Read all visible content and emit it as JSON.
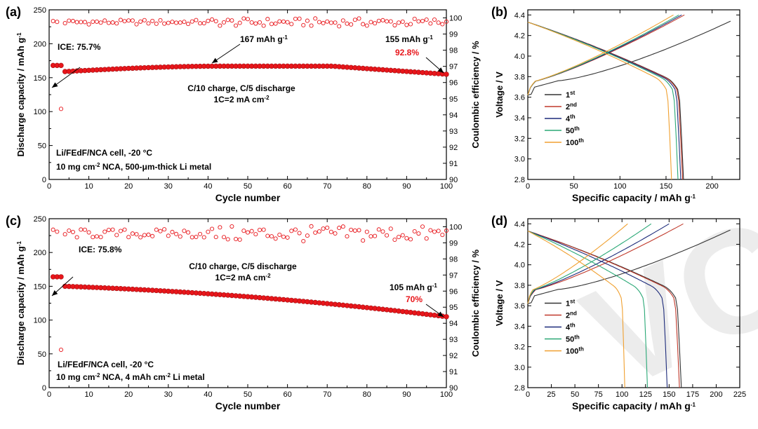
{
  "chart_data": [
    {
      "id": "a",
      "type": "scatter",
      "panel_label": "(a)",
      "xlabel": "Cycle number",
      "ylabel": "Discharge capacity / mAh g",
      "ylabel_sup": "-1",
      "y2label": "Coulombic efficiency / %",
      "xlim": [
        0,
        100
      ],
      "ylim": [
        0,
        250
      ],
      "y2lim": [
        90,
        100.5
      ],
      "xticks": [
        "0",
        "10",
        "20",
        "30",
        "40",
        "50",
        "60",
        "70",
        "80",
        "90",
        "100"
      ],
      "yticks": [
        "0",
        "50",
        "100",
        "150",
        "200",
        "250"
      ],
      "y2ticks": [
        "90",
        "91",
        "92",
        "93",
        "94",
        "95",
        "96",
        "97",
        "98",
        "99",
        "100"
      ],
      "capacity": {
        "first": [
          [
            1,
            168
          ],
          [
            2,
            168
          ],
          [
            3,
            168
          ]
        ],
        "start": 159,
        "peak": 167,
        "end": 155
      },
      "ce": {
        "first": [
          [
            3,
            104
          ]
        ],
        "mean": 99.75,
        "noise": 0.35
      },
      "annotations": {
        "ice": "ICE: 75.7%",
        "peak_label": "167 mAh g",
        "end_label": "155 mAh g",
        "retention": "92.8%",
        "cond1": "C/10 charge, C/5 discharge",
        "cond2": "1C=2 mA cm",
        "cell1": "Li/FEdF/NCA cell,  -20 °C",
        "cell2": "10 mg cm",
        "cell2b": " NCA, 500-μm-thick Li metal",
        "sup": "-1",
        "sup2": "-2"
      },
      "colors": {
        "capacity": "#e8161b",
        "ce": "#e8161b",
        "retention": "#e8161b"
      }
    },
    {
      "id": "b",
      "type": "line",
      "panel_label": "(b)",
      "xlabel": "Specific capacity / mAh g",
      "xlabel_sup": "-1",
      "ylabel": "Voltage / V",
      "xlim": [
        0,
        230
      ],
      "ylim": [
        2.8,
        4.45
      ],
      "xticks": [
        "0",
        "50",
        "100",
        "150",
        "200"
      ],
      "yticks": [
        "2.8",
        "3.0",
        "3.2",
        "3.4",
        "3.6",
        "3.8",
        "4.0",
        "4.2",
        "4.4"
      ],
      "series": [
        {
          "name": "1",
          "sup": "st",
          "color": "#333333",
          "charge_end": 220,
          "discharge_end": 169
        },
        {
          "name": "2",
          "sup": "nd",
          "color": "#c0392b",
          "charge_end": 170,
          "discharge_end": 168
        },
        {
          "name": "4",
          "sup": "th",
          "color": "#1c2a7a",
          "charge_end": 167,
          "discharge_end": 166
        },
        {
          "name": "50",
          "sup": "th",
          "color": "#2aa876",
          "charge_end": 164,
          "discharge_end": 163
        },
        {
          "name": "100",
          "sup": "th",
          "color": "#f0a030",
          "charge_end": 158,
          "discharge_end": 156
        }
      ]
    },
    {
      "id": "c",
      "type": "scatter",
      "panel_label": "(c)",
      "xlabel": "Cycle number",
      "ylabel": "Discharge capacity / mAh g",
      "ylabel_sup": "-1",
      "y2label": "Coulombic efficiency / %",
      "xlim": [
        0,
        100
      ],
      "ylim": [
        0,
        250
      ],
      "y2lim": [
        90,
        100.5
      ],
      "xticks": [
        "0",
        "10",
        "20",
        "30",
        "40",
        "50",
        "60",
        "70",
        "80",
        "90",
        "100"
      ],
      "yticks": [
        "0",
        "50",
        "100",
        "150",
        "200",
        "250"
      ],
      "y2ticks": [
        "90",
        "91",
        "92",
        "93",
        "94",
        "95",
        "96",
        "97",
        "98",
        "99",
        "100"
      ],
      "capacity": {
        "first": [
          [
            1,
            164
          ],
          [
            2,
            164
          ],
          [
            3,
            164
          ]
        ],
        "start": 150,
        "peak": 150,
        "end": 105
      },
      "ce": {
        "first": [
          [
            3,
            56
          ]
        ],
        "mean": 99.6,
        "noise": 0.7
      },
      "annotations": {
        "ice": "ICE: 75.8%",
        "end_label": "105 mAh g",
        "retention": "70%",
        "cond1": "C/10 charge, C/5 discharge",
        "cond2": "1C=2 mA cm",
        "cell1": "Li/FEdF/NCA cell, -20 °C",
        "cell2": "10 mg cm",
        "cell2b": " NCA, 4 mAh cm",
        "cell2c": " Li metal",
        "sup": "-1",
        "sup2": "-2"
      },
      "colors": {
        "capacity": "#e8161b",
        "ce": "#e8161b",
        "retention": "#e8161b"
      }
    },
    {
      "id": "d",
      "type": "line",
      "panel_label": "(d)",
      "xlabel": "Specific capacity / mAh g",
      "xlabel_sup": "-1",
      "ylabel": "Voltage / V",
      "xlim": [
        0,
        225
      ],
      "ylim": [
        2.8,
        4.45
      ],
      "xticks": [
        "0",
        "25",
        "50",
        "75",
        "100",
        "125",
        "150",
        "175",
        "200",
        "225"
      ],
      "yticks": [
        "2.8",
        "3.0",
        "3.2",
        "3.4",
        "3.6",
        "3.8",
        "4.0",
        "4.2",
        "4.4"
      ],
      "series": [
        {
          "name": "1",
          "sup": "st",
          "color": "#333333",
          "charge_end": 215,
          "discharge_end": 163
        },
        {
          "name": "2",
          "sup": "nd",
          "color": "#c0392b",
          "charge_end": 165,
          "discharge_end": 161
        },
        {
          "name": "4",
          "sup": "th",
          "color": "#1c2a7a",
          "charge_end": 150,
          "discharge_end": 148
        },
        {
          "name": "50",
          "sup": "th",
          "color": "#2aa876",
          "charge_end": 131,
          "discharge_end": 127
        },
        {
          "name": "100",
          "sup": "th",
          "color": "#f0a030",
          "charge_end": 106,
          "discharge_end": 103
        }
      ]
    }
  ],
  "watermark": "VCH"
}
